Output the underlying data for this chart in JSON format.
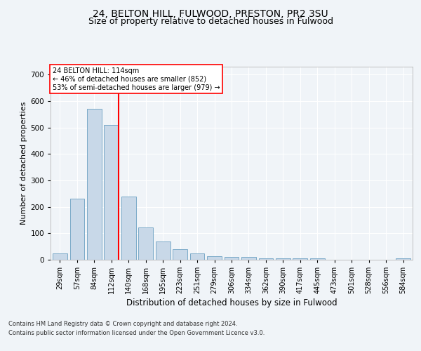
{
  "title1": "24, BELTON HILL, FULWOOD, PRESTON, PR2 3SU",
  "title2": "Size of property relative to detached houses in Fulwood",
  "xlabel": "Distribution of detached houses by size in Fulwood",
  "ylabel": "Number of detached properties",
  "categories": [
    "29sqm",
    "57sqm",
    "84sqm",
    "112sqm",
    "140sqm",
    "168sqm",
    "195sqm",
    "223sqm",
    "251sqm",
    "279sqm",
    "306sqm",
    "334sqm",
    "362sqm",
    "390sqm",
    "417sqm",
    "445sqm",
    "473sqm",
    "501sqm",
    "528sqm",
    "556sqm",
    "584sqm"
  ],
  "values": [
    25,
    232,
    571,
    510,
    240,
    122,
    70,
    40,
    25,
    13,
    10,
    10,
    5,
    5,
    5,
    6,
    0,
    0,
    0,
    0,
    5
  ],
  "bar_color": "#c8d8e8",
  "bar_edge_color": "#7aaac8",
  "redline_index": 3,
  "annotation_line1": "24 BELTON HILL: 114sqm",
  "annotation_line2": "← 46% of detached houses are smaller (852)",
  "annotation_line3": "53% of semi-detached houses are larger (979) →",
  "ylim": [
    0,
    730
  ],
  "yticks": [
    0,
    100,
    200,
    300,
    400,
    500,
    600,
    700
  ],
  "bg_color": "#f0f4f8",
  "plot_bg_color": "#f0f4f8",
  "footer_line1": "Contains HM Land Registry data © Crown copyright and database right 2024.",
  "footer_line2": "Contains public sector information licensed under the Open Government Licence v3.0.",
  "title1_fontsize": 10,
  "title2_fontsize": 9,
  "xlabel_fontsize": 8.5,
  "ylabel_fontsize": 8
}
